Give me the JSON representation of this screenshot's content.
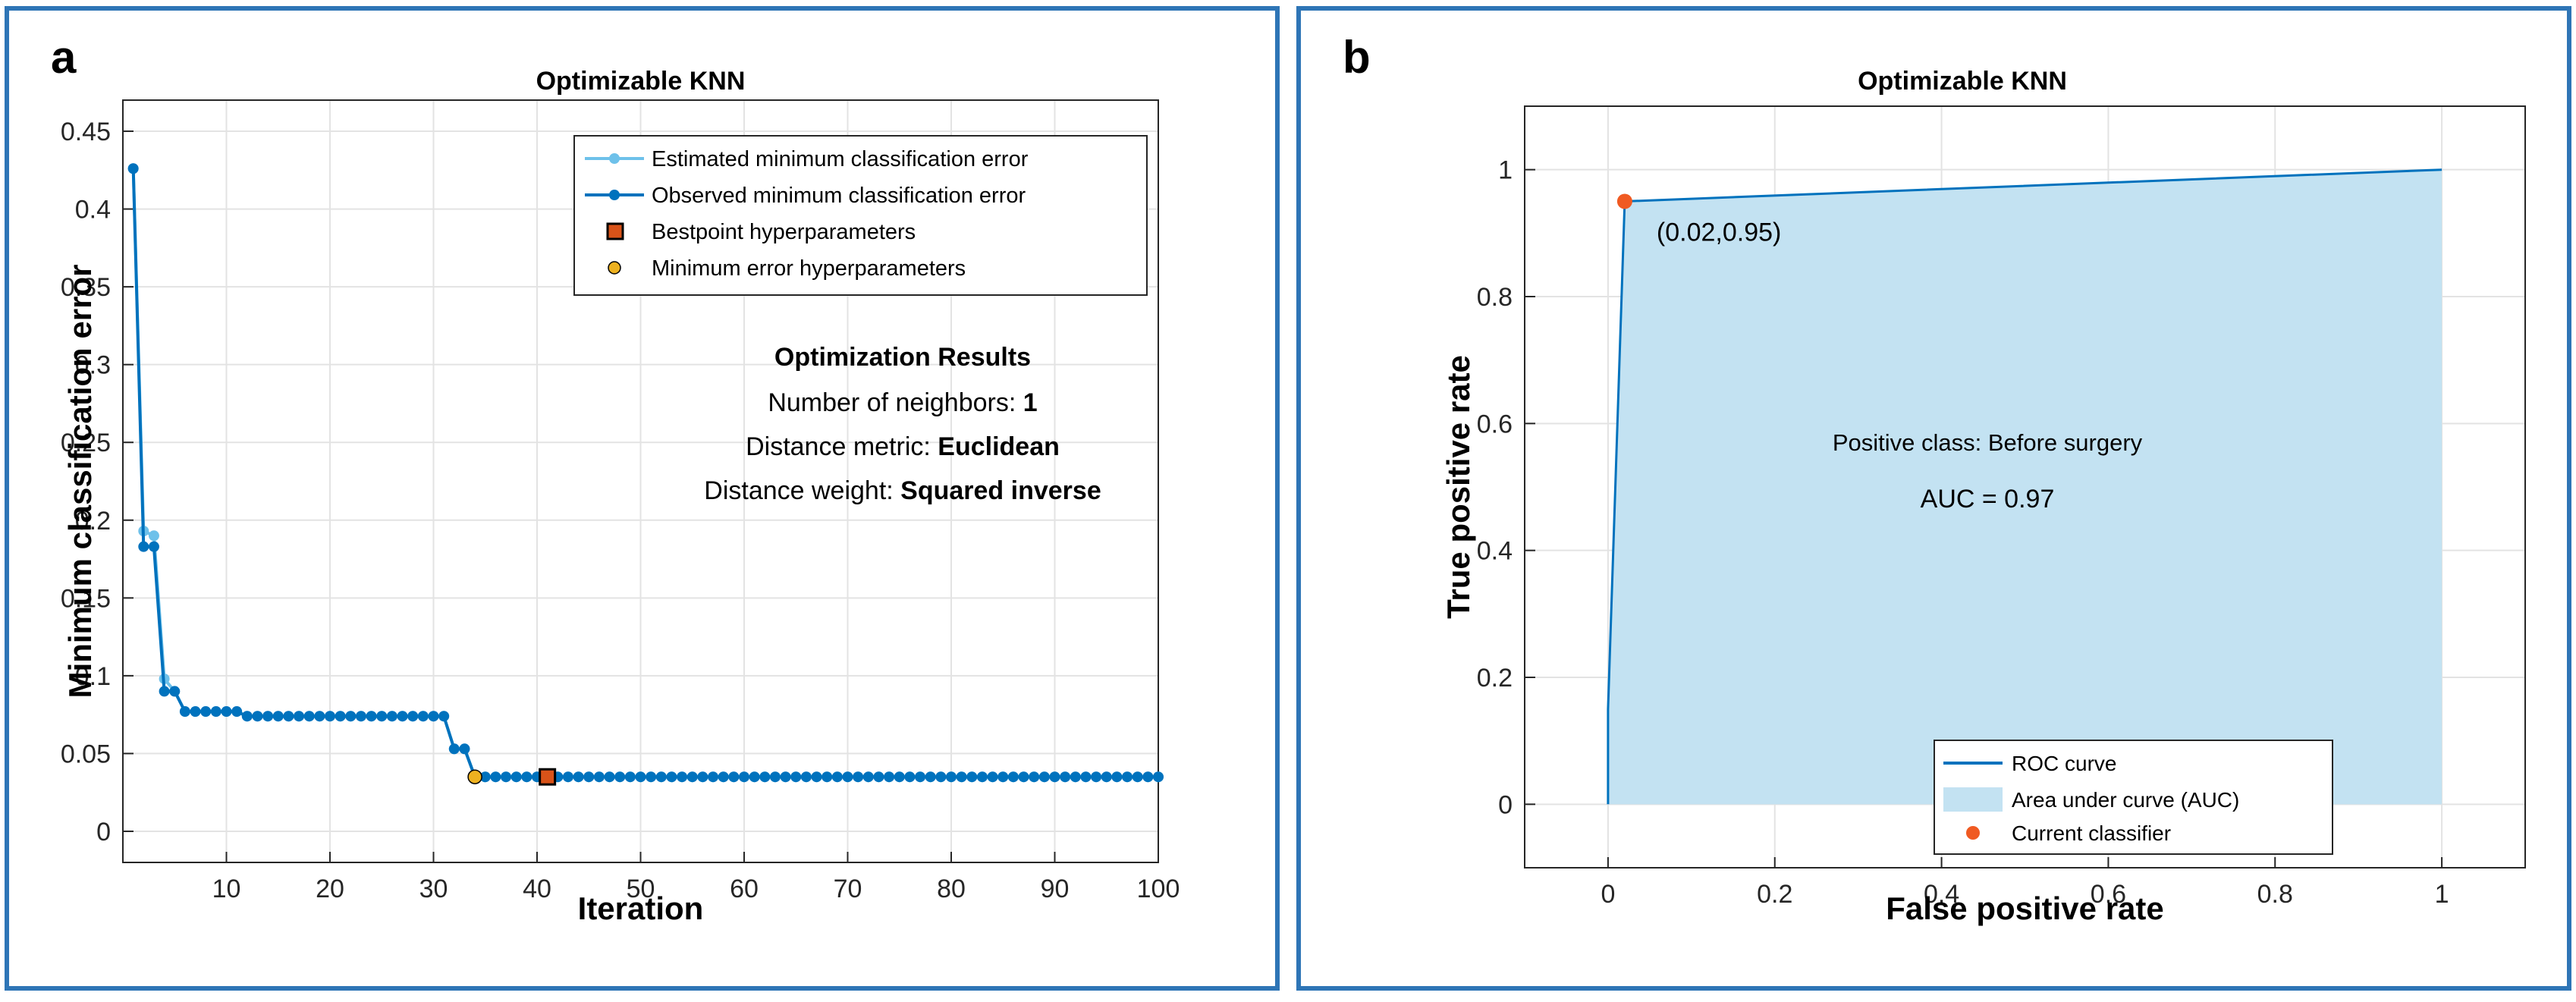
{
  "chart_data": [
    {
      "panel_label": "a",
      "type": "line",
      "title": "Optimizable KNN",
      "xlabel": "Iteration",
      "ylabel": "Minimum classification error",
      "xlim": [
        0,
        100
      ],
      "ylim": [
        -0.02,
        0.47
      ],
      "grid": true,
      "xticks": [
        10,
        20,
        30,
        40,
        50,
        60,
        70,
        80,
        90,
        100
      ],
      "yticks": [
        0,
        0.05,
        0.1,
        0.15,
        0.2,
        0.25,
        0.3,
        0.35,
        0.4,
        0.45
      ],
      "xtick_labels": [
        "10",
        "20",
        "30",
        "40",
        "50",
        "60",
        "70",
        "80",
        "90",
        "100"
      ],
      "ytick_labels": [
        "0",
        "0.05",
        "0.1",
        "0.15",
        "0.2",
        "0.25",
        "0.3",
        "0.35",
        "0.4",
        "0.45"
      ],
      "series": [
        {
          "name": "Estimated minimum classification error",
          "color": "#6ec1ea",
          "x": [
            1,
            2,
            3,
            4,
            5,
            6,
            11,
            12,
            31,
            32,
            33,
            34,
            100
          ],
          "y": [
            0.426,
            0.193,
            0.19,
            0.098,
            0.09,
            0.077,
            0.077,
            0.074,
            0.074,
            0.053,
            0.053,
            0.035,
            0.035
          ]
        },
        {
          "name": "Observed minimum classification error",
          "color": "#0072bd",
          "x": [
            1,
            2,
            3,
            4,
            5,
            6,
            11,
            12,
            31,
            32,
            33,
            34,
            100
          ],
          "y": [
            0.426,
            0.183,
            0.183,
            0.09,
            0.09,
            0.077,
            0.077,
            0.074,
            0.074,
            0.053,
            0.053,
            0.035,
            0.035
          ]
        }
      ],
      "bestpoint": {
        "name": "Bestpoint hyperparameters",
        "x": 41,
        "y": 0.035,
        "color": "#d95319"
      },
      "min_error_point": {
        "name": "Minimum error hyperparameters",
        "x": 34,
        "y": 0.035,
        "color": "#edb120"
      },
      "annotation": {
        "heading": "Optimization Results",
        "line1_label": "Number of neighbors: ",
        "line1_value": "1",
        "line2_label": "Distance metric: ",
        "line2_value": "Euclidean",
        "line3_label": "Distance weight: ",
        "line3_value": "Squared inverse"
      },
      "legend_position": "top-right"
    },
    {
      "panel_label": "b",
      "type": "area",
      "title": "Optimizable KNN",
      "xlabel": "False positive rate",
      "ylabel": "True positive rate",
      "xlim": [
        -0.1,
        1.1
      ],
      "ylim": [
        -0.1,
        1.1
      ],
      "grid": true,
      "xticks": [
        0,
        0.2,
        0.4,
        0.6,
        0.8,
        1
      ],
      "yticks": [
        0,
        0.2,
        0.4,
        0.6,
        0.8,
        1
      ],
      "xtick_labels": [
        "0",
        "0.2",
        "0.4",
        "0.6",
        "0.8",
        "1"
      ],
      "ytick_labels": [
        "0",
        "0.2",
        "0.4",
        "0.6",
        "0.8",
        "1"
      ],
      "roc_curve": {
        "name": "ROC curve",
        "color": "#0072bd",
        "x": [
          0,
          0.0,
          0.02,
          1.0
        ],
        "y": [
          0,
          0.15,
          0.95,
          1.0
        ]
      },
      "auc_area": {
        "name": "Area under curve (AUC)",
        "color": "#c3e2f2"
      },
      "current_classifier": {
        "name": "Current classifier",
        "x": 0.02,
        "y": 0.95,
        "label": "(0.02,0.95)",
        "color": "#f05a22"
      },
      "annotation": {
        "positive_class": "Positive class: Before surgery",
        "auc": "AUC = 0.97"
      },
      "legend_position": "bottom-right"
    }
  ]
}
